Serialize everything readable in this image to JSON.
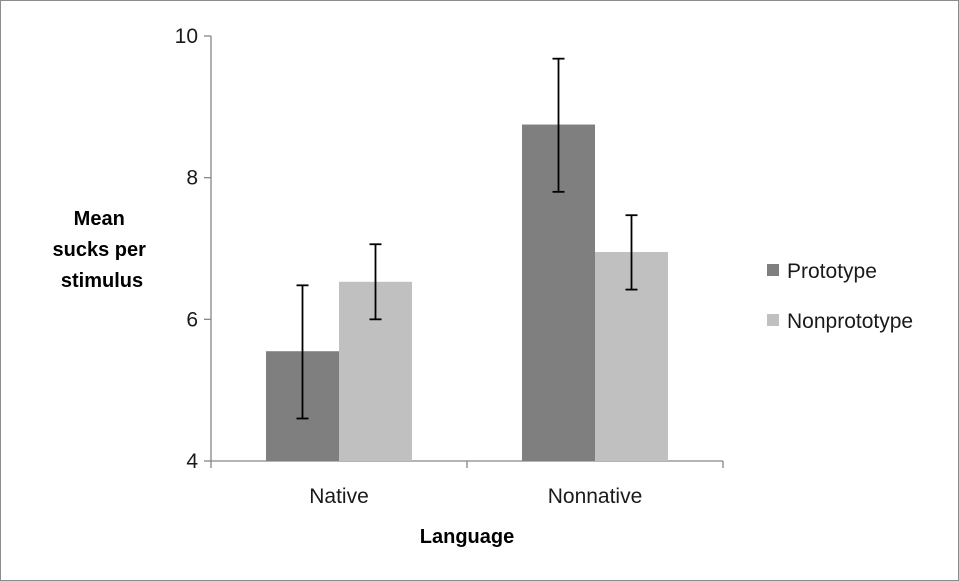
{
  "chart_data": {
    "type": "bar",
    "title": "",
    "xlabel": "Language",
    "ylabel_lines": [
      "Mean",
      "sucks per",
      "stimulus"
    ],
    "categories": [
      "Native",
      "Nonnative"
    ],
    "series": [
      {
        "name": "Prototype",
        "color": "#7f7f7f",
        "values": [
          5.55,
          8.75
        ],
        "error_low": [
          4.6,
          7.8
        ],
        "error_high": [
          6.48,
          9.68
        ]
      },
      {
        "name": "Nonprototype",
        "color": "#c0c0c0",
        "values": [
          6.53,
          6.95
        ],
        "error_low": [
          6.0,
          6.42
        ],
        "error_high": [
          7.06,
          7.47
        ]
      }
    ],
    "ylim": [
      4,
      10
    ],
    "yticks": [
      4,
      6,
      8,
      10
    ],
    "grid": false,
    "legend_position": "right"
  }
}
